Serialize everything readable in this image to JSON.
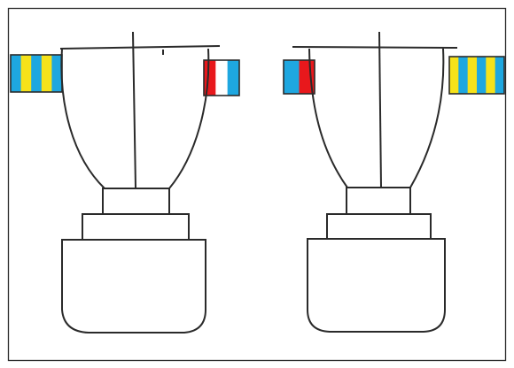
{
  "colors": {
    "background": "#ffffff",
    "outline": "#2a2a2a",
    "blue": "#1ea7e0",
    "yellow": "#f6e21a",
    "red": "#e8181c"
  },
  "figures": [
    {
      "name": "left-assembly",
      "left_band": [
        "blue",
        "yellow",
        "blue",
        "yellow",
        "blue"
      ],
      "right_band": [
        "red",
        "white",
        "blue"
      ]
    },
    {
      "name": "right-assembly",
      "left_band": [
        "blue",
        "red"
      ],
      "right_band": [
        "yellow",
        "blue",
        "yellow",
        "blue",
        "yellow",
        "blue"
      ]
    }
  ]
}
